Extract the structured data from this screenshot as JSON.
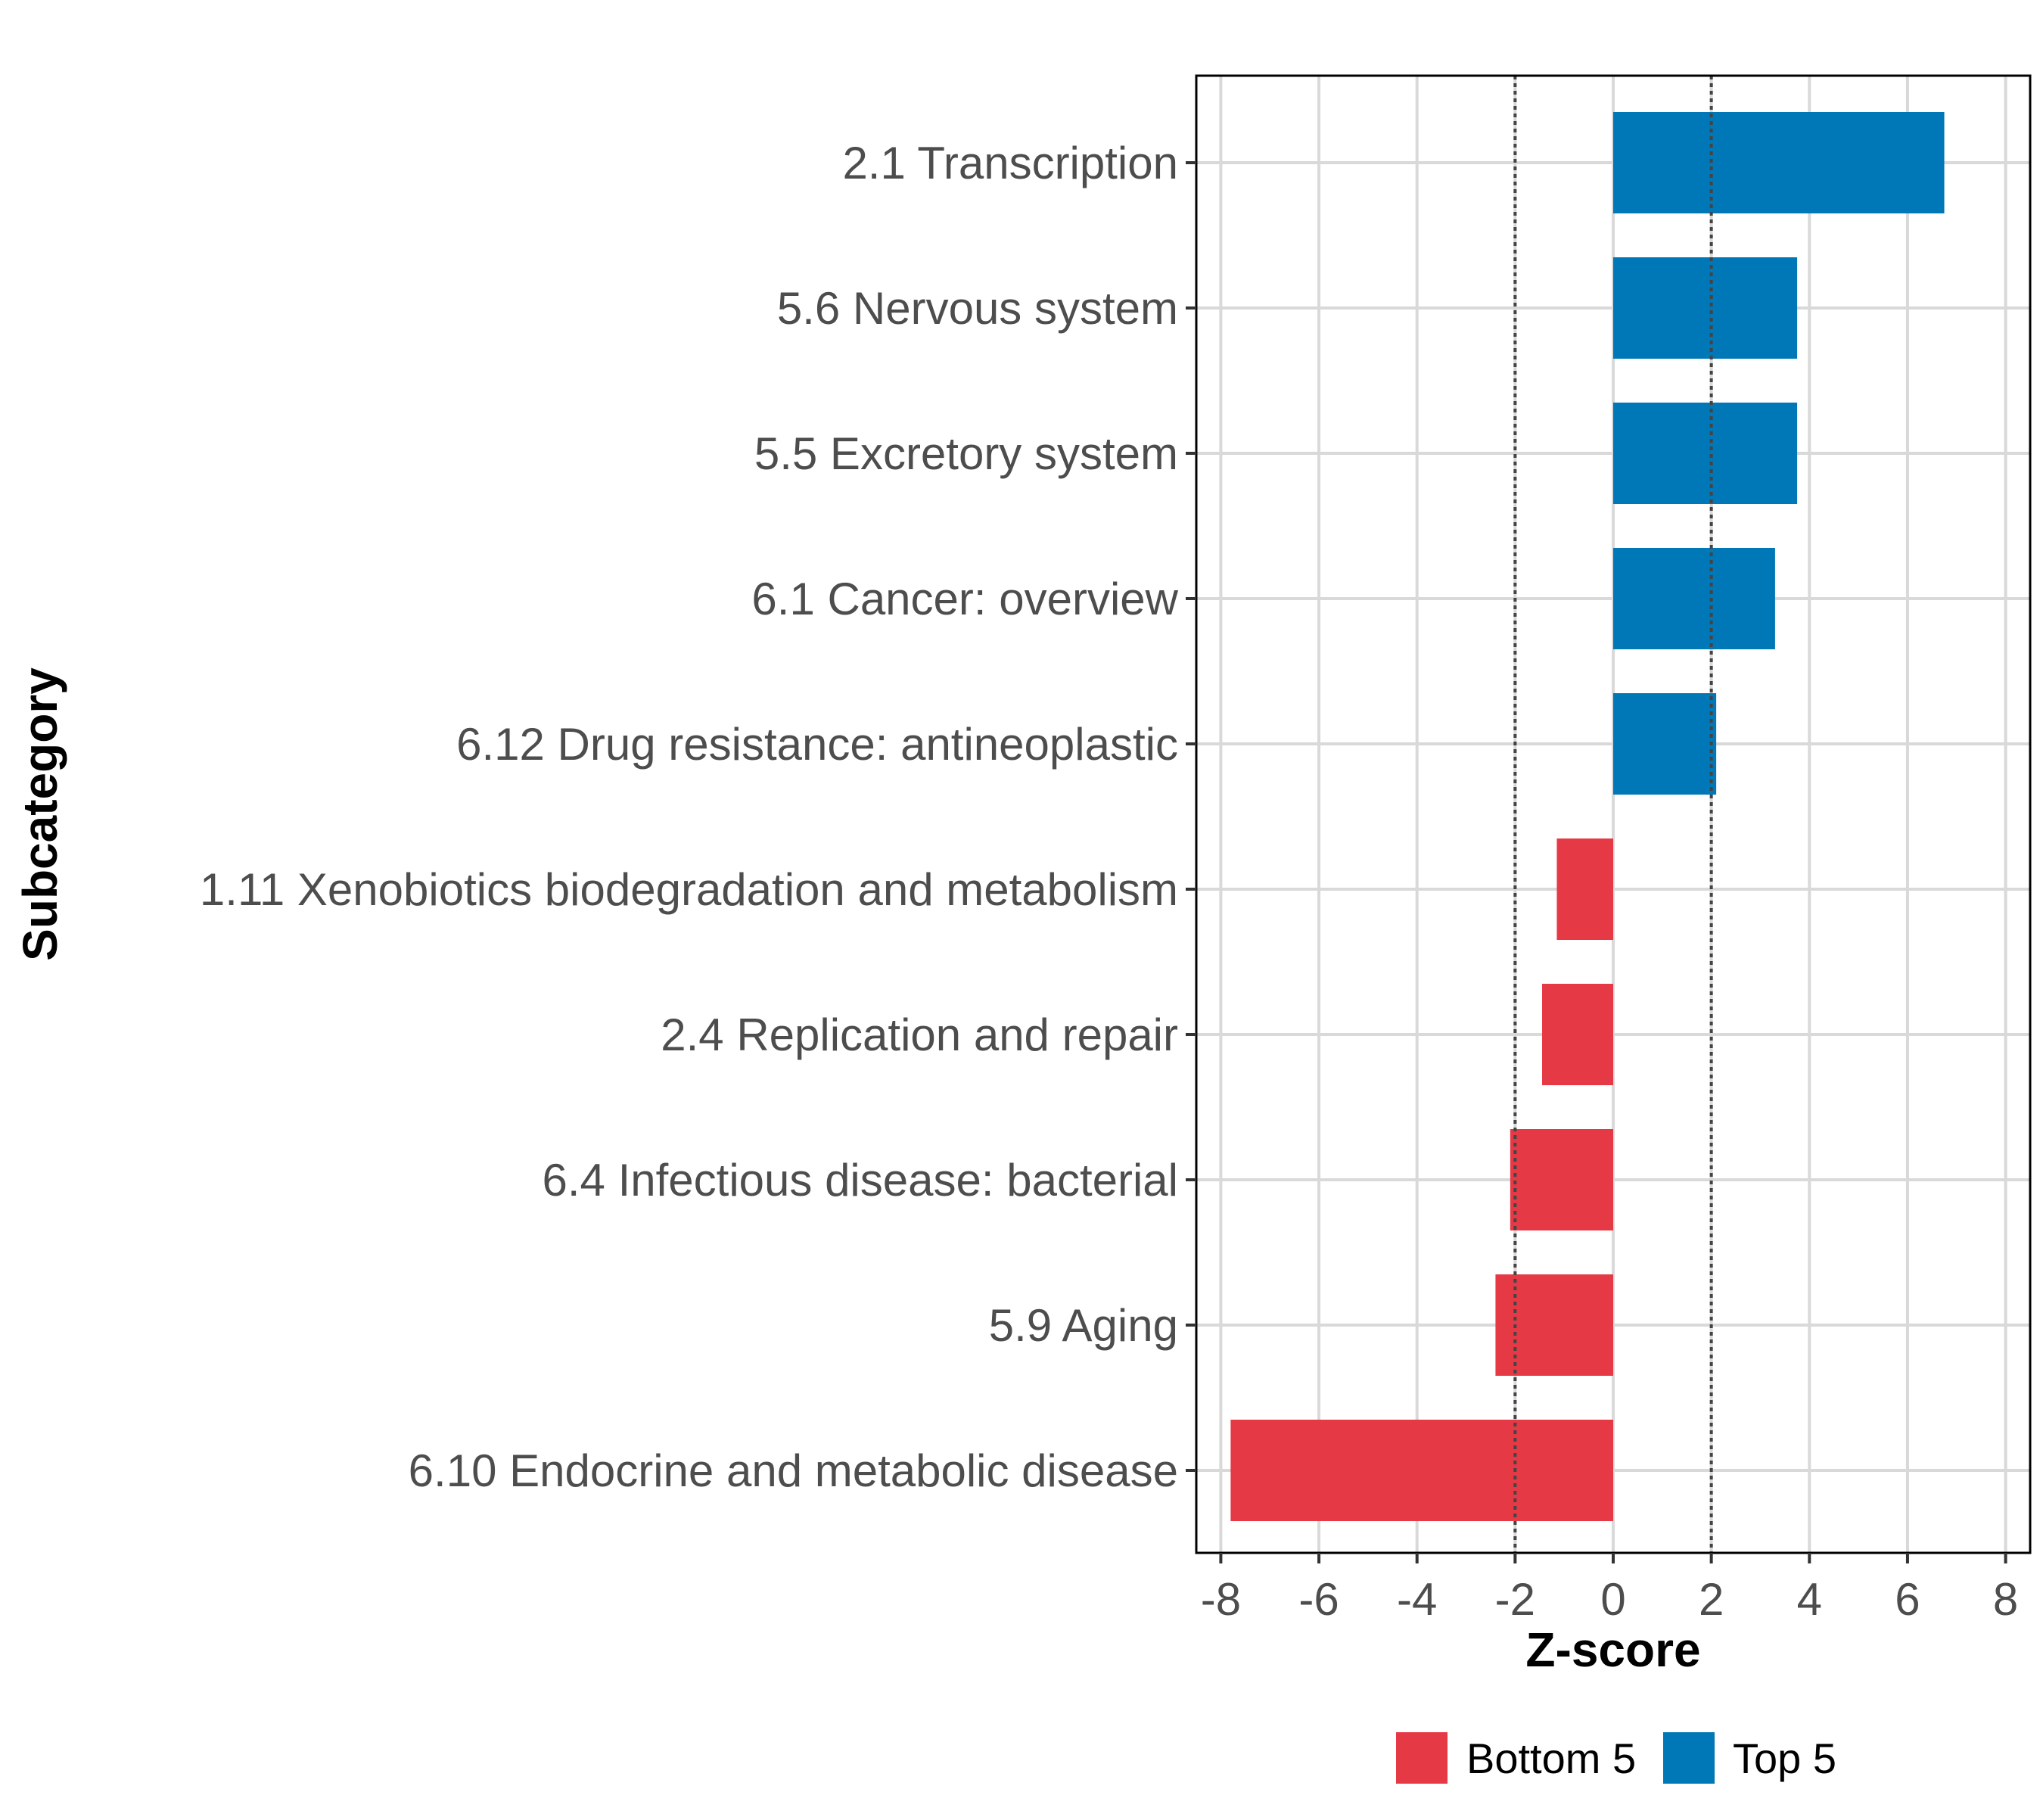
{
  "chart_data": {
    "type": "bar",
    "orientation": "horizontal",
    "title": "",
    "xlabel": "Z-score",
    "ylabel": "Subcategory",
    "xlim": [
      -8.5,
      8.5
    ],
    "xticks": [
      -8,
      -6,
      -4,
      -2,
      0,
      2,
      4,
      6,
      8
    ],
    "xtick_labels": [
      "-8",
      "-6",
      "-4",
      "-2",
      "0",
      "2",
      "4",
      "6",
      "8"
    ],
    "grid": true,
    "reference_lines": [
      -2,
      2
    ],
    "categories": [
      "2.1 Transcription",
      "5.6 Nervous system",
      "5.5 Excretory system",
      "6.1 Cancer: overview",
      "6.12 Drug resistance: antineoplastic",
      "1.11 Xenobiotics biodegradation and metabolism",
      "2.4 Replication and repair",
      "6.4 Infectious disease: bacterial",
      "5.9 Aging",
      "6.10 Endocrine and metabolic disease"
    ],
    "values": [
      6.75,
      3.75,
      3.75,
      3.3,
      2.1,
      -1.15,
      -1.45,
      -2.1,
      -2.4,
      -7.8
    ],
    "groups": [
      "Top 5",
      "Top 5",
      "Top 5",
      "Top 5",
      "Top 5",
      "Bottom 5",
      "Bottom 5",
      "Bottom 5",
      "Bottom 5",
      "Bottom 5"
    ],
    "legend": {
      "position": "bottom",
      "entries": [
        {
          "label": "Bottom 5",
          "color": "#e63946"
        },
        {
          "label": "Top 5",
          "color": "#0077b6"
        }
      ]
    },
    "colors": {
      "Top 5": "#0077b6",
      "Bottom 5": "#e63946"
    }
  }
}
